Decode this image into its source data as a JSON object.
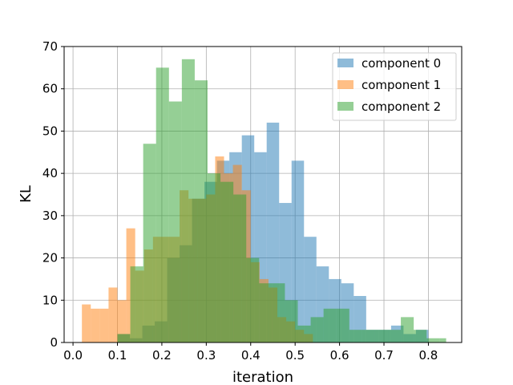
{
  "chart_data": {
    "type": "bar",
    "subtype": "histogram",
    "xlabel": "iteration",
    "ylabel": "KL",
    "xlim": [
      -0.02,
      0.875
    ],
    "ylim": [
      0,
      70
    ],
    "xticks": [
      "0.0",
      "0.1",
      "0.2",
      "0.3",
      "0.4",
      "0.5",
      "0.6",
      "0.7",
      "0.8"
    ],
    "yticks": [
      "0",
      "10",
      "20",
      "30",
      "40",
      "50",
      "60",
      "70"
    ],
    "grid": true,
    "legend_position": "top-right",
    "bar_opacity": 0.5,
    "series": [
      {
        "name": "component 0",
        "color": "#1f77b4",
        "bins": [
          [
            0.1,
            0.128,
            2
          ],
          [
            0.128,
            0.156,
            1
          ],
          [
            0.156,
            0.184,
            4
          ],
          [
            0.184,
            0.212,
            5
          ],
          [
            0.212,
            0.24,
            20
          ],
          [
            0.24,
            0.268,
            23
          ],
          [
            0.268,
            0.296,
            34
          ],
          [
            0.296,
            0.324,
            38
          ],
          [
            0.324,
            0.352,
            43
          ],
          [
            0.352,
            0.38,
            45
          ],
          [
            0.38,
            0.408,
            49
          ],
          [
            0.408,
            0.436,
            45
          ],
          [
            0.436,
            0.464,
            52
          ],
          [
            0.464,
            0.492,
            33
          ],
          [
            0.492,
            0.52,
            43
          ],
          [
            0.52,
            0.548,
            25
          ],
          [
            0.548,
            0.576,
            18
          ],
          [
            0.576,
            0.604,
            15
          ],
          [
            0.604,
            0.632,
            14
          ],
          [
            0.632,
            0.66,
            11
          ],
          [
            0.66,
            0.688,
            3
          ],
          [
            0.688,
            0.716,
            3
          ],
          [
            0.716,
            0.744,
            4
          ],
          [
            0.744,
            0.772,
            2
          ],
          [
            0.772,
            0.8,
            3
          ]
        ]
      },
      {
        "name": "component 1",
        "color": "#ff7f0e",
        "bins": [
          [
            0.02,
            0.04,
            9
          ],
          [
            0.04,
            0.06,
            8
          ],
          [
            0.06,
            0.08,
            8
          ],
          [
            0.08,
            0.1,
            13
          ],
          [
            0.1,
            0.12,
            10
          ],
          [
            0.12,
            0.14,
            27
          ],
          [
            0.14,
            0.16,
            17
          ],
          [
            0.16,
            0.18,
            22
          ],
          [
            0.18,
            0.2,
            25
          ],
          [
            0.2,
            0.22,
            25
          ],
          [
            0.22,
            0.24,
            25
          ],
          [
            0.24,
            0.26,
            36
          ],
          [
            0.26,
            0.28,
            34
          ],
          [
            0.28,
            0.3,
            34
          ],
          [
            0.3,
            0.32,
            35
          ],
          [
            0.32,
            0.34,
            44
          ],
          [
            0.34,
            0.36,
            40
          ],
          [
            0.36,
            0.38,
            42
          ],
          [
            0.38,
            0.4,
            36
          ],
          [
            0.4,
            0.42,
            19
          ],
          [
            0.42,
            0.44,
            15
          ],
          [
            0.44,
            0.46,
            13
          ],
          [
            0.46,
            0.48,
            6
          ],
          [
            0.48,
            0.5,
            5
          ],
          [
            0.5,
            0.52,
            3
          ],
          [
            0.52,
            0.54,
            2
          ]
        ]
      },
      {
        "name": "component 2",
        "color": "#2ca02c",
        "bins": [
          [
            0.1,
            0.129,
            2
          ],
          [
            0.129,
            0.158,
            18
          ],
          [
            0.158,
            0.187,
            47
          ],
          [
            0.187,
            0.216,
            65
          ],
          [
            0.216,
            0.245,
            57
          ],
          [
            0.245,
            0.274,
            67
          ],
          [
            0.274,
            0.303,
            62
          ],
          [
            0.303,
            0.332,
            40
          ],
          [
            0.332,
            0.361,
            38
          ],
          [
            0.361,
            0.39,
            35
          ],
          [
            0.39,
            0.419,
            20
          ],
          [
            0.419,
            0.448,
            14
          ],
          [
            0.448,
            0.477,
            14
          ],
          [
            0.477,
            0.506,
            10
          ],
          [
            0.506,
            0.535,
            4
          ],
          [
            0.535,
            0.564,
            6
          ],
          [
            0.564,
            0.593,
            8
          ],
          [
            0.593,
            0.622,
            8
          ],
          [
            0.622,
            0.651,
            3
          ],
          [
            0.651,
            0.68,
            3
          ],
          [
            0.68,
            0.709,
            3
          ],
          [
            0.709,
            0.738,
            3
          ],
          [
            0.738,
            0.767,
            6
          ],
          [
            0.767,
            0.796,
            3
          ],
          [
            0.796,
            0.825,
            1
          ],
          [
            0.825,
            0.84,
            1
          ]
        ]
      }
    ]
  }
}
